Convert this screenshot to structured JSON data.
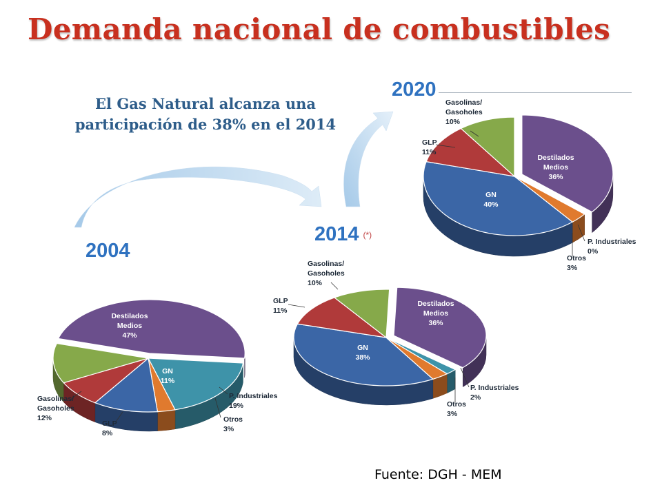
{
  "title": "Demanda nacional de combustibles",
  "subtitle": "El Gas Natural alcanza una participación de 38% en el 2014",
  "source": "Fuente: DGH - MEM",
  "colors": {
    "title": "#c8301f",
    "subtitle": "#2e5d8a",
    "year": "#2f72c0",
    "destilados": "#6b4f8c",
    "pind": "#3e93a9",
    "otros": "#e07a2e",
    "gn": "#3b66a6",
    "glp": "#b03a3a",
    "gasolinas": "#86a94a"
  },
  "chart_data": [
    {
      "type": "pie",
      "year_label": "2004",
      "year_note": "",
      "slices": [
        {
          "label": "Destilados Medios",
          "value": 47
        },
        {
          "label": "P. Industriales",
          "value": 19
        },
        {
          "label": "Otros",
          "value": 3
        },
        {
          "label": "GN",
          "value": 11
        },
        {
          "label": "GLP",
          "value": 8
        },
        {
          "label": "Gasolinas/ Gasoholes",
          "value": 12
        }
      ]
    },
    {
      "type": "pie",
      "year_label": "2014",
      "year_note": "(*)",
      "slices": [
        {
          "label": "Destilados Medios",
          "value": 36
        },
        {
          "label": "P. Industriales",
          "value": 2
        },
        {
          "label": "Otros",
          "value": 3
        },
        {
          "label": "GN",
          "value": 38
        },
        {
          "label": "GLP",
          "value": 11
        },
        {
          "label": "Gasolinas/ Gasoholes",
          "value": 10
        }
      ]
    },
    {
      "type": "pie",
      "year_label": "2020",
      "year_note": "",
      "slices": [
        {
          "label": "Destilados Medios",
          "value": 36
        },
        {
          "label": "P. Industriales",
          "value": 0
        },
        {
          "label": "Otros",
          "value": 3
        },
        {
          "label": "GN",
          "value": 40
        },
        {
          "label": "GLP",
          "value": 11
        },
        {
          "label": "Gasolinas/ Gasoholes",
          "value": 10
        }
      ]
    }
  ]
}
